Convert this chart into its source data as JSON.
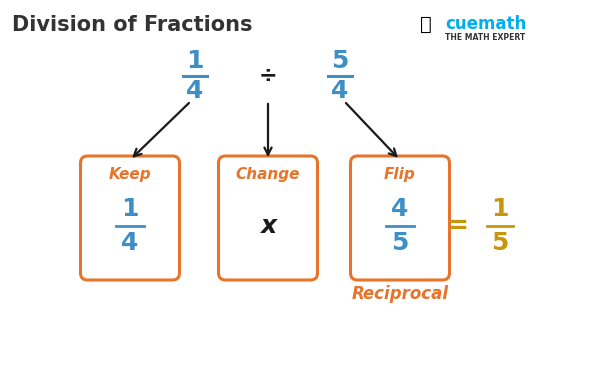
{
  "title": "Division of Fractions",
  "title_color": "#333333",
  "title_fontsize": 15,
  "background_color": "#ffffff",
  "orange_color": "#E8732A",
  "blue_color": "#3D8FC5",
  "gold_color": "#C8960C",
  "black_color": "#1a1a1a",
  "fraction1_num": "1",
  "fraction1_den": "4",
  "fraction2_num": "5",
  "fraction2_den": "4",
  "div_symbol": "÷",
  "box_labels": [
    "Keep",
    "Change",
    "Flip"
  ],
  "box_contents": [
    [
      "1",
      "4"
    ],
    [
      "x",
      ""
    ],
    [
      "4",
      "5"
    ]
  ],
  "result_num": "1",
  "result_den": "5",
  "reciprocal_label": "Reciprocal",
  "equal_sign": "=",
  "cuemath_text": "cuemath",
  "math_expert_text": "THE MATH EXPERT",
  "logo_blue": "#00AEEF",
  "logo_yellow": "#F5A623",
  "logo_dark": "#333333"
}
